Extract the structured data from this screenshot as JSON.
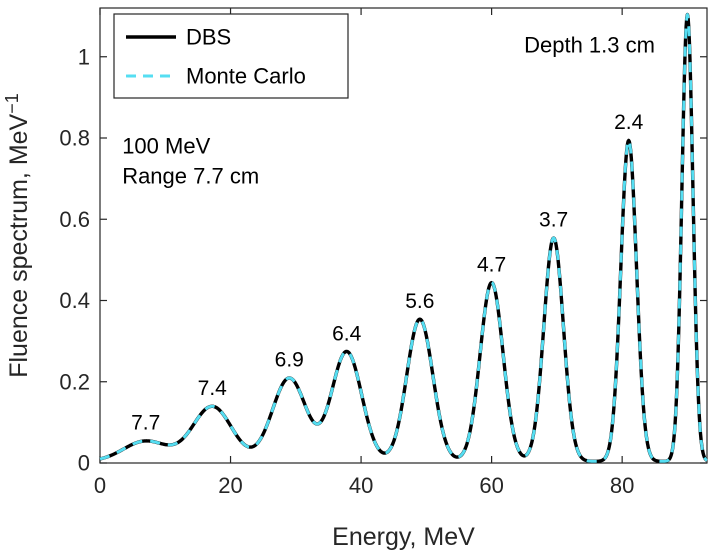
{
  "chart_data": {
    "type": "line",
    "title": "",
    "xlabel": "Energy, MeV",
    "ylabel": {
      "text": "Fluence spectrum, MeV",
      "exponent": "−1"
    },
    "xlim": [
      0,
      93
    ],
    "ylim": [
      0,
      1.12
    ],
    "xticks": [
      {
        "v": 0,
        "label": "0"
      },
      {
        "v": 20,
        "label": "20"
      },
      {
        "v": 40,
        "label": "40"
      },
      {
        "v": 60,
        "label": "60"
      },
      {
        "v": 80,
        "label": "80"
      }
    ],
    "yticks": [
      {
        "v": 0,
        "label": "0"
      },
      {
        "v": 0.2,
        "label": "0.2"
      },
      {
        "v": 0.4,
        "label": "0.4"
      },
      {
        "v": 0.6,
        "label": "0.6"
      },
      {
        "v": 0.8,
        "label": "0.8"
      },
      {
        "v": 1,
        "label": "1"
      }
    ],
    "grid": false,
    "axis_color": "#262626",
    "text_color": "#000000",
    "series": [
      {
        "name": "DBS",
        "color": "#000000",
        "style": "solid"
      },
      {
        "name": "Monte Carlo",
        "color": "#55DEF2",
        "style": "dashed"
      }
    ],
    "legend": {
      "position": "top-left",
      "entries": [
        "DBS",
        "Monte Carlo"
      ]
    },
    "baseline": 0.004,
    "peaks": [
      {
        "center": 7.0,
        "height": 0.05,
        "sigma": 3.4,
        "label": "7.7"
      },
      {
        "center": 17.2,
        "height": 0.135,
        "sigma": 3.0,
        "label": "7.4"
      },
      {
        "center": 29.0,
        "height": 0.205,
        "sigma": 2.6,
        "label": "6.9"
      },
      {
        "center": 37.8,
        "height": 0.27,
        "sigma": 2.3,
        "label": "6.4"
      },
      {
        "center": 49.0,
        "height": 0.35,
        "sigma": 2.0,
        "label": "5.6"
      },
      {
        "center": 60.0,
        "height": 0.44,
        "sigma": 1.75,
        "label": "4.7"
      },
      {
        "center": 69.5,
        "height": 0.55,
        "sigma": 1.5,
        "label": "3.7"
      },
      {
        "center": 81.0,
        "height": 0.79,
        "sigma": 1.2,
        "label": "2.4"
      },
      {
        "center": 90.0,
        "height": 1.1,
        "sigma": 0.85,
        "label": ""
      }
    ],
    "annotations": [
      {
        "text": "Depth 1.3 cm",
        "x": 75.0,
        "y": 1.01,
        "anchor": "middle"
      },
      {
        "text": "100 MeV",
        "x": 3.4,
        "y": 0.762,
        "anchor": "start"
      },
      {
        "text": "Range 7.7 cm",
        "x": 3.4,
        "y": 0.688,
        "anchor": "start"
      }
    ]
  }
}
